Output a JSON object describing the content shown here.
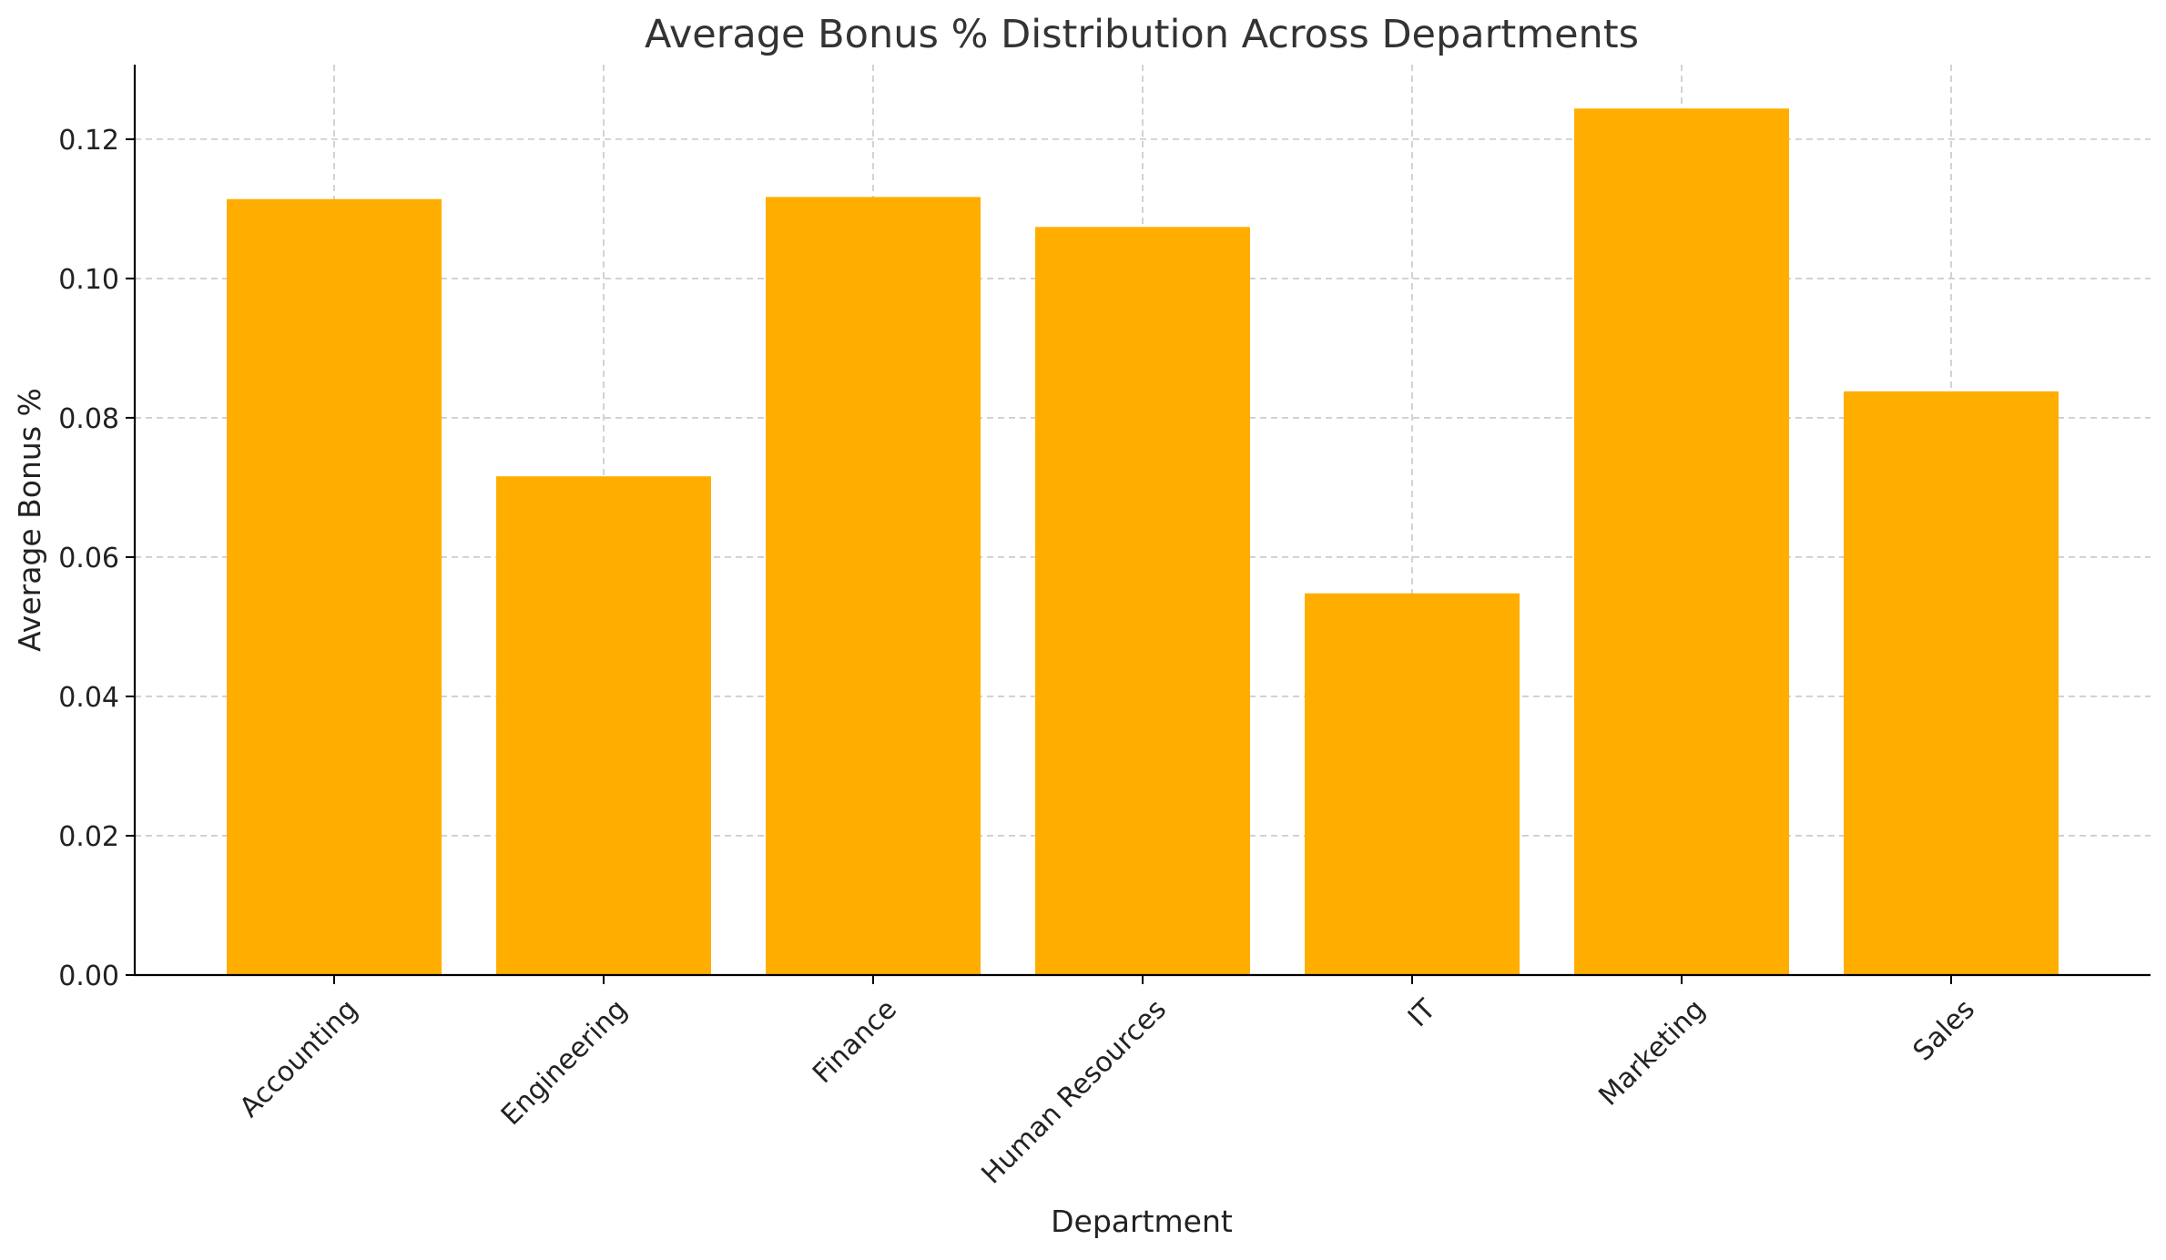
{
  "chart_data": {
    "type": "bar",
    "title": "Average Bonus % Distribution Across Departments",
    "xlabel": "Department",
    "ylabel": "Average Bonus %",
    "categories": [
      "Accounting",
      "Engineering",
      "Finance",
      "Human Resources",
      "IT",
      "Marketing",
      "Sales"
    ],
    "values": [
      0.1114,
      0.0716,
      0.1117,
      0.1074,
      0.0548,
      0.1244,
      0.0838
    ],
    "ylim": [
      0,
      0.1307
    ],
    "yticks": [
      0.0,
      0.02,
      0.04,
      0.06,
      0.08,
      0.1,
      0.12
    ],
    "ytick_labels": [
      "0.00",
      "0.02",
      "0.04",
      "0.06",
      "0.08",
      "0.10",
      "0.12"
    ],
    "xtick_rotation": 45,
    "bar_color": "#FFAE00",
    "grid": true,
    "grid_color": "#c8c8c8",
    "legend": "none"
  }
}
